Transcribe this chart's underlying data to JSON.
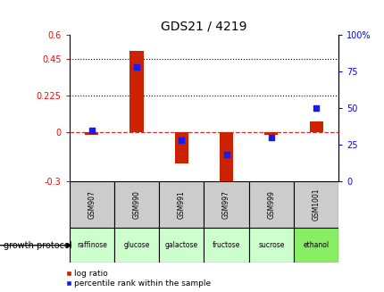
{
  "title": "GDS21 / 4219",
  "samples": [
    "GSM907",
    "GSM990",
    "GSM991",
    "GSM997",
    "GSM999",
    "GSM1001"
  ],
  "substrates": [
    "raffinose",
    "glucose",
    "galactose",
    "fructose",
    "sucrose",
    "ethanol"
  ],
  "substrate_colors": [
    "#ccffcc",
    "#ccffcc",
    "#ccffcc",
    "#ccffcc",
    "#ccffcc",
    "#88ee66"
  ],
  "log_ratios": [
    -0.015,
    0.5,
    -0.19,
    -0.32,
    -0.015,
    0.07
  ],
  "percentile_ranks": [
    35,
    78,
    28,
    18,
    30,
    50
  ],
  "left_ylim": [
    -0.3,
    0.6
  ],
  "right_ylim": [
    0,
    100
  ],
  "left_yticks": [
    -0.3,
    0,
    0.225,
    0.45,
    0.6
  ],
  "right_yticks": [
    0,
    25,
    50,
    75,
    100
  ],
  "hline_values": [
    0.45,
    0.225
  ],
  "bar_color": "#cc2200",
  "dot_color": "#1a1aee",
  "zero_line_color": "#cc3333",
  "legend_log_ratio": "log ratio",
  "legend_percentile": "percentile rank within the sample",
  "growth_protocol_label": "growth protocol",
  "sample_bg_color": "#cccccc",
  "bar_width": 0.3
}
